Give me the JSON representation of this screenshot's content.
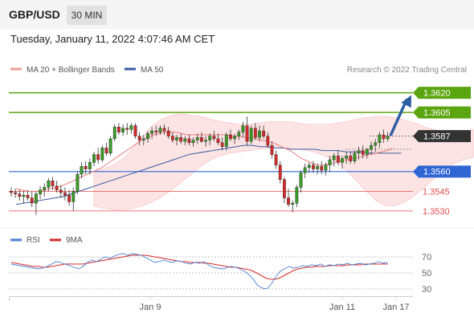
{
  "header": {
    "symbol": "GBP/USD",
    "timeframe": "30 MIN",
    "datetime": "Tuesday, January 11, 2022 4:07:46 AM CET"
  },
  "legend": {
    "ma20": "MA 20 + Bollinger Bands",
    "ma50": "MA 50",
    "credit": "Research © 2022 Trading Central"
  },
  "rsi_legend": {
    "rsi": "RSI",
    "ma9": "9MA"
  },
  "colors": {
    "green": "#5ba510",
    "blue": "#2f66d4",
    "red": "#e44b4b",
    "candle_up": "#3a9b24",
    "candle_down": "#d42b2b",
    "band_fill": "#fde3e3",
    "ma50": "#3c5aa0",
    "arrow": "#2f5fa3",
    "current_badge": "#333333"
  },
  "chart_data": [
    {
      "type": "candlestick",
      "title": "GBP/USD 30 MIN",
      "ylim": [
        1.3522,
        1.3632
      ],
      "x_labels": [
        "Jan 9",
        "Jan 11",
        "Jan 17"
      ],
      "levels": [
        {
          "value": 1.362,
          "label": "1.3620",
          "kind": "resistance",
          "color": "#5ba510",
          "style": "badge"
        },
        {
          "value": 1.3605,
          "label": "1.3605",
          "kind": "resistance",
          "color": "#5ba510",
          "style": "badge"
        },
        {
          "value": 1.3587,
          "label": "1.3587",
          "kind": "current",
          "color": "#333333",
          "style": "badge"
        },
        {
          "value": 1.356,
          "label": "1.3560",
          "kind": "pivot",
          "color": "#2f66d4",
          "style": "badge"
        },
        {
          "value": 1.3545,
          "label": "1.3545",
          "kind": "support",
          "color": "#e44b4b",
          "style": "text"
        },
        {
          "value": 1.353,
          "label": "1.3530",
          "kind": "support",
          "color": "#e44b4b",
          "style": "text"
        }
      ],
      "candles": [
        [
          1.3545,
          1.3548,
          1.3541,
          1.3544
        ],
        [
          1.3544,
          1.3547,
          1.354,
          1.3543
        ],
        [
          1.3543,
          1.3546,
          1.3538,
          1.3541
        ],
        [
          1.3541,
          1.3545,
          1.3536,
          1.3542
        ],
        [
          1.3542,
          1.3546,
          1.3538,
          1.354
        ],
        [
          1.354,
          1.3545,
          1.3533,
          1.3536
        ],
        [
          1.3536,
          1.3545,
          1.3527,
          1.3543
        ],
        [
          1.3543,
          1.3549,
          1.3539,
          1.3546
        ],
        [
          1.3546,
          1.3551,
          1.3541,
          1.3548
        ],
        [
          1.3548,
          1.3555,
          1.3545,
          1.3553
        ],
        [
          1.3553,
          1.3556,
          1.3546,
          1.3549
        ],
        [
          1.3549,
          1.3553,
          1.3544,
          1.3546
        ],
        [
          1.3546,
          1.355,
          1.354,
          1.3544
        ],
        [
          1.3544,
          1.3548,
          1.3538,
          1.3542
        ],
        [
          1.3542,
          1.3546,
          1.3534,
          1.3537
        ],
        [
          1.3537,
          1.3548,
          1.353,
          1.3545
        ],
        [
          1.3545,
          1.356,
          1.3543,
          1.3558
        ],
        [
          1.3558,
          1.3567,
          1.3555,
          1.3564
        ],
        [
          1.3564,
          1.3568,
          1.3558,
          1.3562
        ],
        [
          1.3562,
          1.357,
          1.3558,
          1.3567
        ],
        [
          1.3567,
          1.3575,
          1.3564,
          1.3573
        ],
        [
          1.3573,
          1.3578,
          1.3566,
          1.3569
        ],
        [
          1.3569,
          1.358,
          1.3567,
          1.3578
        ],
        [
          1.3578,
          1.3582,
          1.3572,
          1.3574
        ],
        [
          1.3574,
          1.3587,
          1.3572,
          1.3585
        ],
        [
          1.3585,
          1.3596,
          1.3583,
          1.3594
        ],
        [
          1.3594,
          1.3597,
          1.3588,
          1.359
        ],
        [
          1.359,
          1.3596,
          1.3587,
          1.3593
        ],
        [
          1.3593,
          1.3597,
          1.3588,
          1.3592
        ],
        [
          1.3592,
          1.3597,
          1.3589,
          1.3595
        ],
        [
          1.3595,
          1.3597,
          1.3585,
          1.3587
        ],
        [
          1.3587,
          1.359,
          1.358,
          1.3584
        ],
        [
          1.3584,
          1.3588,
          1.358,
          1.3585
        ],
        [
          1.3585,
          1.3591,
          1.3582,
          1.3589
        ],
        [
          1.3589,
          1.3594,
          1.3585,
          1.3591
        ],
        [
          1.3591,
          1.3595,
          1.3587,
          1.359
        ],
        [
          1.359,
          1.3595,
          1.3588,
          1.3593
        ],
        [
          1.3593,
          1.3596,
          1.3588,
          1.3591
        ],
        [
          1.3591,
          1.3594,
          1.3585,
          1.3587
        ],
        [
          1.3587,
          1.359,
          1.3582,
          1.3584
        ],
        [
          1.3584,
          1.3588,
          1.358,
          1.3586
        ],
        [
          1.3586,
          1.3589,
          1.3581,
          1.3583
        ],
        [
          1.3583,
          1.3587,
          1.358,
          1.3585
        ],
        [
          1.3585,
          1.3588,
          1.358,
          1.3582
        ],
        [
          1.3582,
          1.3586,
          1.3579,
          1.3584
        ],
        [
          1.3584,
          1.3589,
          1.3581,
          1.3586
        ],
        [
          1.3586,
          1.359,
          1.3582,
          1.3583
        ],
        [
          1.3583,
          1.3587,
          1.3579,
          1.3584
        ],
        [
          1.3584,
          1.3589,
          1.358,
          1.3587
        ],
        [
          1.3587,
          1.3591,
          1.3583,
          1.3585
        ],
        [
          1.3585,
          1.3589,
          1.358,
          1.3582
        ],
        [
          1.3582,
          1.3586,
          1.3576,
          1.3579
        ],
        [
          1.3579,
          1.359,
          1.3576,
          1.3588
        ],
        [
          1.3588,
          1.3592,
          1.3583,
          1.3585
        ],
        [
          1.3585,
          1.3589,
          1.3581,
          1.3587
        ],
        [
          1.3587,
          1.3592,
          1.3584,
          1.359
        ],
        [
          1.359,
          1.3598,
          1.3586,
          1.3595
        ],
        [
          1.3595,
          1.3602,
          1.358,
          1.3583
        ],
        [
          1.3583,
          1.3595,
          1.3581,
          1.3593
        ],
        [
          1.3593,
          1.3597,
          1.3584,
          1.3586
        ],
        [
          1.3586,
          1.3595,
          1.3583,
          1.3591
        ],
        [
          1.3591,
          1.3595,
          1.3585,
          1.3587
        ],
        [
          1.3587,
          1.359,
          1.3578,
          1.358
        ],
        [
          1.358,
          1.3583,
          1.357,
          1.3573
        ],
        [
          1.3573,
          1.3576,
          1.3562,
          1.3565
        ],
        [
          1.3565,
          1.3568,
          1.3551,
          1.3554
        ],
        [
          1.3554,
          1.3556,
          1.3536,
          1.354
        ],
        [
          1.354,
          1.3547,
          1.3533,
          1.3535
        ],
        [
          1.3535,
          1.3538,
          1.3529,
          1.3536
        ],
        [
          1.3536,
          1.355,
          1.3533,
          1.3548
        ],
        [
          1.3548,
          1.3561,
          1.3544,
          1.3559
        ],
        [
          1.3559,
          1.3566,
          1.3555,
          1.3563
        ],
        [
          1.3563,
          1.3567,
          1.3559,
          1.3565
        ],
        [
          1.3565,
          1.3568,
          1.3559,
          1.3562
        ],
        [
          1.3562,
          1.3566,
          1.3558,
          1.3564
        ],
        [
          1.3564,
          1.3568,
          1.3558,
          1.3561
        ],
        [
          1.3561,
          1.3567,
          1.3557,
          1.3565
        ],
        [
          1.3565,
          1.3572,
          1.356,
          1.3569
        ],
        [
          1.3569,
          1.3574,
          1.3564,
          1.3572
        ],
        [
          1.3572,
          1.3576,
          1.3565,
          1.3567
        ],
        [
          1.3567,
          1.3572,
          1.3562,
          1.357
        ],
        [
          1.357,
          1.3575,
          1.3566,
          1.3572
        ],
        [
          1.3572,
          1.3575,
          1.3566,
          1.3568
        ],
        [
          1.3568,
          1.3576,
          1.3566,
          1.3574
        ],
        [
          1.3574,
          1.3579,
          1.3569,
          1.3576
        ],
        [
          1.3576,
          1.358,
          1.357,
          1.3573
        ],
        [
          1.3573,
          1.3578,
          1.357,
          1.3577
        ],
        [
          1.3577,
          1.3583,
          1.3573,
          1.358
        ],
        [
          1.358,
          1.3585,
          1.3575,
          1.3582
        ],
        [
          1.3582,
          1.359,
          1.3578,
          1.3588
        ],
        [
          1.3588,
          1.3592,
          1.3582,
          1.3585
        ],
        [
          1.3585,
          1.359,
          1.3583,
          1.3587
        ]
      ],
      "ma20": [
        1.3547,
        1.3546,
        1.3545,
        1.3545,
        1.3545,
        1.3546,
        1.3547,
        1.3548,
        1.3549,
        1.3551,
        1.3553,
        1.3555,
        1.3557,
        1.3559,
        1.3561,
        1.3563,
        1.3566,
        1.3569,
        1.3572,
        1.3575,
        1.3578,
        1.3581,
        1.3584,
        1.3586,
        1.3588,
        1.3589,
        1.359,
        1.359,
        1.359,
        1.3589,
        1.3588,
        1.3588,
        1.3588,
        1.3588,
        1.3588,
        1.3588,
        1.3588,
        1.3588,
        1.3587,
        1.3587,
        1.3586,
        1.3586,
        1.3585,
        1.3584,
        1.3583,
        1.3582,
        1.358,
        1.3578,
        1.3576,
        1.3573,
        1.357,
        1.3568,
        1.3566,
        1.3565,
        1.3565,
        1.3566,
        1.3567,
        1.3568,
        1.3569,
        1.357,
        1.3571,
        1.3572,
        1.3573,
        1.3574,
        1.3575,
        1.3576,
        1.3578
      ],
      "ma50": [
        1.3535,
        1.3536,
        1.3537,
        1.3538,
        1.3539,
        1.354,
        1.3541,
        1.3543,
        1.3545,
        1.3547,
        1.3549,
        1.3551,
        1.3553,
        1.3555,
        1.3557,
        1.3559,
        1.3561,
        1.3563,
        1.3565,
        1.3567,
        1.3569,
        1.3571,
        1.3573,
        1.3574,
        1.3575,
        1.3576,
        1.3577,
        1.3578,
        1.3579,
        1.358,
        1.358,
        1.3579,
        1.3579,
        1.3578,
        1.3578,
        1.3577,
        1.3577,
        1.3577,
        1.3577,
        1.3576,
        1.3576,
        1.3576,
        1.3575,
        1.3575,
        1.3575,
        1.3574,
        1.3574,
        1.3574,
        1.3574,
        1.3574
      ],
      "bb_upper": [
        1.356,
        1.3562,
        1.3565,
        1.357,
        1.3578,
        1.3587,
        1.3595,
        1.36,
        1.3603,
        1.3604,
        1.3603,
        1.3602,
        1.36,
        1.3598,
        1.3597,
        1.3596,
        1.3596,
        1.3597,
        1.3598,
        1.3598,
        1.3598,
        1.3597,
        1.3596,
        1.3596,
        1.3596,
        1.3597,
        1.3598,
        1.36,
        1.3601,
        1.3602,
        1.3602,
        1.3601,
        1.3599,
        1.3597,
        1.3594,
        1.3592,
        1.359,
        1.3589,
        1.359,
        1.3592
      ],
      "bb_lower": [
        1.3534,
        1.3532,
        1.3531,
        1.3531,
        1.3532,
        1.3534,
        1.3537,
        1.3541,
        1.3546,
        1.3552,
        1.3558,
        1.3564,
        1.3569,
        1.3572,
        1.3574,
        1.3575,
        1.3576,
        1.3577,
        1.3578,
        1.3578,
        1.3578,
        1.3577,
        1.3576,
        1.3574,
        1.3571,
        1.3567,
        1.3561,
        1.3553,
        1.3545,
        1.3538,
        1.3534,
        1.3534,
        1.3537,
        1.3542,
        1.3548,
        1.3555,
        1.3561,
        1.3566,
        1.3569,
        1.3571
      ],
      "forecast": {
        "from": 1.3587,
        "to": 1.362
      }
    },
    {
      "type": "line",
      "title": "RSI",
      "ylim": [
        22,
        78
      ],
      "yticks": [
        "70",
        "50",
        "30"
      ],
      "series": [
        {
          "name": "RSI",
          "color": "#4a7fd4",
          "values": [
            61,
            60,
            59,
            58,
            57,
            56,
            55,
            56,
            58,
            61,
            64,
            63,
            61,
            59,
            57,
            55,
            58,
            63,
            66,
            64,
            67,
            70,
            68,
            71,
            73,
            74,
            72,
            74,
            73,
            72,
            69,
            66,
            63,
            64,
            66,
            64,
            63,
            65,
            64,
            62,
            61,
            63,
            62,
            64,
            60,
            57,
            56,
            55,
            56,
            58,
            57,
            55,
            52,
            48,
            42,
            34,
            31,
            30,
            36,
            45,
            52,
            55,
            58,
            56,
            57,
            59,
            58,
            60,
            59,
            61,
            58,
            60,
            59,
            61,
            60,
            62,
            60,
            61,
            62,
            60,
            61,
            62,
            64,
            62,
            63
          ]
        },
        {
          "name": "9MA",
          "color": "#d42b2b",
          "values": [
            63,
            62,
            61,
            60,
            59,
            58,
            58,
            57,
            57,
            58,
            59,
            60,
            61,
            61,
            61,
            61,
            61,
            62,
            63,
            64,
            65,
            66,
            67,
            68,
            69,
            70,
            71,
            72,
            72,
            72,
            72,
            71,
            70,
            69,
            68,
            67,
            66,
            65,
            64,
            64,
            63,
            63,
            63,
            62,
            62,
            61,
            60,
            59,
            58,
            57,
            57,
            56,
            55,
            54,
            52,
            49,
            46,
            43,
            42,
            42,
            44,
            47,
            50,
            53,
            55,
            56,
            57,
            57,
            58,
            58,
            58,
            59,
            59,
            59,
            59,
            60,
            60,
            60,
            60,
            61,
            61,
            61,
            61,
            61,
            61
          ]
        }
      ]
    }
  ]
}
